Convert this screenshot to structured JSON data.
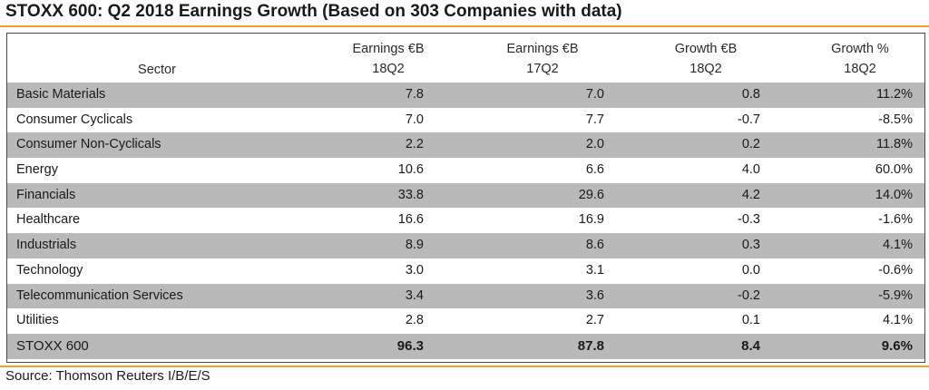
{
  "title": "STOXX 600: Q2 2018 Earnings Growth (Based on 303 Companies with data)",
  "header": {
    "sector": "Sector",
    "col1_line1": "Earnings €B",
    "col1_line2": "18Q2",
    "col2_line1": "Earnings €B",
    "col2_line2": "17Q2",
    "col3_line1": "Growth €B",
    "col3_line2": "18Q2",
    "col4_line1": "Growth %",
    "col4_line2": "18Q2"
  },
  "rows": [
    {
      "sector": "Basic Materials",
      "earnings_18q2": "7.8",
      "earnings_17q2": "7.0",
      "growth_eur_b": "0.8",
      "growth_pct": "11.2%"
    },
    {
      "sector": "Consumer Cyclicals",
      "earnings_18q2": "7.0",
      "earnings_17q2": "7.7",
      "growth_eur_b": "-0.7",
      "growth_pct": "-8.5%"
    },
    {
      "sector": "Consumer Non-Cyclicals",
      "earnings_18q2": "2.2",
      "earnings_17q2": "2.0",
      "growth_eur_b": "0.2",
      "growth_pct": "11.8%"
    },
    {
      "sector": "Energy",
      "earnings_18q2": "10.6",
      "earnings_17q2": "6.6",
      "growth_eur_b": "4.0",
      "growth_pct": "60.0%"
    },
    {
      "sector": "Financials",
      "earnings_18q2": "33.8",
      "earnings_17q2": "29.6",
      "growth_eur_b": "4.2",
      "growth_pct": "14.0%"
    },
    {
      "sector": "Healthcare",
      "earnings_18q2": "16.6",
      "earnings_17q2": "16.9",
      "growth_eur_b": "-0.3",
      "growth_pct": "-1.6%"
    },
    {
      "sector": "Industrials",
      "earnings_18q2": "8.9",
      "earnings_17q2": "8.6",
      "growth_eur_b": "0.3",
      "growth_pct": "4.1%"
    },
    {
      "sector": "Technology",
      "earnings_18q2": "3.0",
      "earnings_17q2": "3.1",
      "growth_eur_b": "0.0",
      "growth_pct": "-0.6%"
    },
    {
      "sector": "Telecommunication Services",
      "earnings_18q2": "3.4",
      "earnings_17q2": "3.6",
      "growth_eur_b": "-0.2",
      "growth_pct": "-5.9%"
    },
    {
      "sector": "Utilities",
      "earnings_18q2": "2.8",
      "earnings_17q2": "2.7",
      "growth_eur_b": "0.1",
      "growth_pct": "4.1%"
    }
  ],
  "total": {
    "sector": "STOXX 600",
    "earnings_18q2": "96.3",
    "earnings_17q2": "87.8",
    "growth_eur_b": "8.4",
    "growth_pct": "9.6%"
  },
  "source": "Source: Thomson Reuters I/B/E/S",
  "colors": {
    "accent_rule": "#e8a628",
    "shaded_row": "#b9b9b9"
  }
}
